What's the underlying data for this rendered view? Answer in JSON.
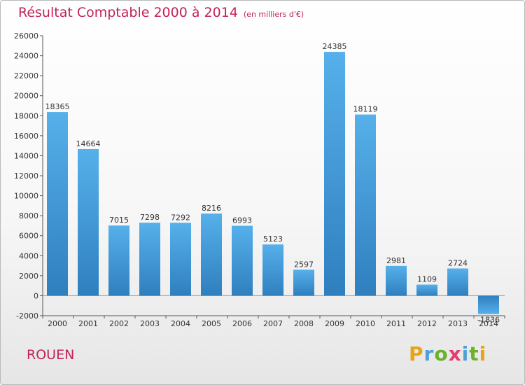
{
  "chart_data": {
    "type": "bar",
    "title": "Résultat Comptable 2000 à 2014",
    "subtitle": "(en milliers d'€)",
    "categories": [
      "2000",
      "2001",
      "2002",
      "2003",
      "2004",
      "2005",
      "2006",
      "2007",
      "2008",
      "2009",
      "2010",
      "2011",
      "2012",
      "2013",
      "2014"
    ],
    "values": [
      18365,
      14664,
      7015,
      7298,
      7292,
      8216,
      6993,
      5123,
      2597,
      24385,
      18119,
      2981,
      1109,
      2724,
      -1836
    ],
    "ylim": [
      -2000,
      26000
    ],
    "yticks": [
      "-2000",
      "0",
      "2000",
      "4000",
      "6000",
      "8000",
      "10000",
      "12000",
      "14000",
      "16000",
      "18000",
      "20000",
      "22000",
      "24000",
      "26000"
    ],
    "grid": false,
    "bar_color": "#3f98d6"
  },
  "location": "ROUEN",
  "logo": {
    "letters": [
      "P",
      "r",
      "o",
      "x",
      "i",
      "t",
      "i"
    ],
    "colors": [
      "#e8a318",
      "#4f9fd8",
      "#6ab22c",
      "#e23d6e",
      "#4f9fd8",
      "#6ab22c",
      "#e8a318"
    ]
  }
}
